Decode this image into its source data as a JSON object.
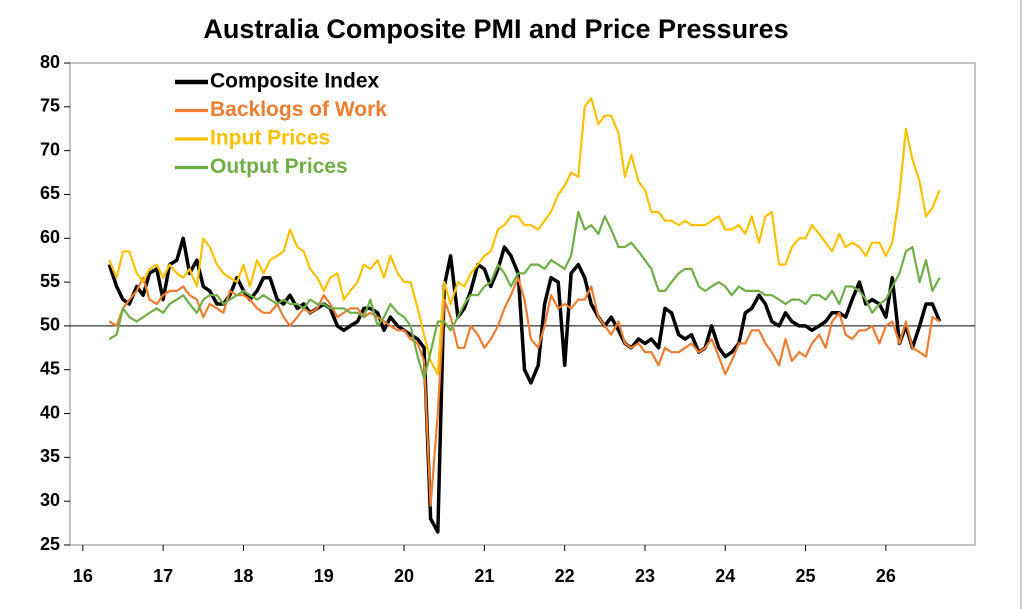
{
  "chart_data": {
    "type": "line",
    "title": "Australia Composite PMI and Price Pressures",
    "x": [
      16.33,
      16.42,
      16.5,
      16.58,
      16.67,
      16.75,
      16.83,
      16.92,
      17,
      17.08,
      17.17,
      17.25,
      17.33,
      17.42,
      17.5,
      17.58,
      17.67,
      17.75,
      17.83,
      17.92,
      18,
      18.08,
      18.17,
      18.25,
      18.33,
      18.42,
      18.5,
      18.58,
      18.67,
      18.75,
      18.83,
      18.92,
      19,
      19.08,
      19.17,
      19.25,
      19.33,
      19.42,
      19.5,
      19.58,
      19.67,
      19.75,
      19.83,
      19.92,
      20,
      20.08,
      20.17,
      20.25,
      20.33,
      20.42,
      20.5,
      20.58,
      20.67,
      20.75,
      20.83,
      20.92,
      21,
      21.08,
      21.17,
      21.25,
      21.33,
      21.42,
      21.5,
      21.58,
      21.67,
      21.75,
      21.83,
      21.92,
      22,
      22.08,
      22.17,
      22.25,
      22.33,
      22.42,
      22.5,
      22.58,
      22.67,
      22.75,
      22.83,
      22.92,
      23,
      23.08,
      23.17,
      23.25,
      23.33,
      23.42,
      23.5,
      23.58,
      23.67,
      23.75,
      23.83,
      23.92,
      24,
      24.08,
      24.17,
      24.25,
      24.33,
      24.42,
      24.5,
      24.58,
      24.67,
      24.75,
      24.83,
      24.92,
      25,
      25.08,
      25.17,
      25.25,
      25.33,
      25.42,
      25.5,
      25.58,
      25.67,
      25.75,
      25.83,
      25.92,
      26,
      26.08,
      26.17,
      26.25,
      26.33,
      26.42,
      26.5,
      26.58,
      26.67
    ],
    "series": [
      {
        "name": "Composite Index",
        "color": "#000000",
        "width": 3.5,
        "values": [
          57,
          54.5,
          53,
          52.5,
          54.5,
          53.5,
          56,
          56.5,
          53,
          57,
          57.5,
          60,
          56,
          57.5,
          54.5,
          54,
          52.5,
          52.5,
          53.5,
          55.5,
          54,
          53,
          54,
          55.5,
          55.5,
          53,
          52.5,
          53.5,
          52,
          52.5,
          51.5,
          52,
          52.5,
          52,
          50,
          49.5,
          50,
          50.5,
          52,
          52,
          51.5,
          49.5,
          51,
          50,
          49.5,
          49,
          48.5,
          47.5,
          28,
          26.5,
          54.5,
          58,
          51,
          52,
          54,
          57,
          56.5,
          54.5,
          56.5,
          59,
          58,
          56,
          45,
          43.5,
          45.5,
          52.5,
          55.5,
          55,
          45.5,
          56,
          57,
          55.5,
          52.5,
          51,
          50,
          51,
          49.5,
          48,
          47.5,
          48.5,
          48,
          48.5,
          47.5,
          52,
          51.5,
          49,
          48.5,
          49,
          47,
          47.5,
          50,
          47.5,
          46.5,
          47,
          48,
          51.5,
          52,
          53.5,
          52.5,
          50.5,
          50,
          51.5,
          50.5,
          50,
          50,
          49.5,
          50,
          50.5,
          51.5,
          51.5,
          51,
          53,
          55,
          52.5,
          53,
          52.5,
          51,
          55.5,
          48,
          50,
          47.5,
          50,
          52.5,
          52.5,
          50.5
        ]
      },
      {
        "name": "Backlogs of Work",
        "color": "#ed7d31",
        "width": 2.2,
        "values": [
          50.5,
          50,
          52,
          53,
          54,
          55.5,
          53,
          52.5,
          53.5,
          54,
          54,
          54.5,
          53.5,
          53,
          51,
          52.5,
          52,
          51.5,
          54,
          53.5,
          53.5,
          53,
          52,
          51.5,
          51.5,
          52.5,
          51,
          50,
          51,
          52,
          51.5,
          52,
          53.5,
          52.5,
          51,
          51.5,
          52,
          52,
          51,
          51.5,
          51,
          50.5,
          50,
          49.5,
          49.5,
          48.5,
          48,
          46,
          29.5,
          40,
          53,
          51,
          47.5,
          47.5,
          50,
          49,
          47.5,
          48.5,
          50,
          52,
          53.5,
          55.5,
          53,
          48.5,
          47.5,
          50,
          53.5,
          52,
          52.5,
          52,
          53,
          53,
          54.5,
          51,
          50,
          49,
          50.5,
          48,
          47.5,
          48,
          47,
          47,
          45.5,
          47.5,
          47,
          47,
          47.5,
          48,
          47,
          47.5,
          48.5,
          46.5,
          44.5,
          46,
          48,
          48,
          49.5,
          49.5,
          48,
          47,
          45.5,
          48.5,
          46,
          47,
          46.5,
          48,
          49,
          47.5,
          50.5,
          51.5,
          49,
          48.5,
          49.5,
          49.5,
          50,
          48,
          50,
          50.5,
          48,
          50.5,
          47.5,
          47,
          46.5,
          51,
          50.5
        ]
      },
      {
        "name": "Input Prices",
        "color": "#ffc000",
        "width": 2.2,
        "values": [
          57.5,
          55.5,
          58.5,
          58.5,
          56,
          55,
          56.5,
          57,
          55.5,
          57,
          56,
          55.5,
          56.5,
          54.5,
          60,
          59,
          57,
          56,
          55.5,
          55,
          57,
          54.5,
          57.5,
          56,
          57.5,
          58,
          58.5,
          61,
          59,
          58.5,
          56.5,
          55.5,
          54,
          55.5,
          56,
          53,
          54,
          55,
          57,
          56.5,
          57.5,
          55.5,
          58,
          56,
          55,
          55,
          52,
          49,
          46,
          44.5,
          55,
          52.5,
          55,
          54.5,
          56,
          57,
          58,
          58.5,
          61,
          61.5,
          62.5,
          62.5,
          61.5,
          61.5,
          61,
          62,
          63,
          65,
          66,
          67.5,
          67,
          75,
          76,
          73,
          74,
          74,
          72,
          67,
          69.5,
          66.5,
          65.5,
          63,
          63,
          62,
          62,
          61.5,
          62,
          61.5,
          61.5,
          61.5,
          62,
          62.5,
          61,
          61,
          61.5,
          60.5,
          62.5,
          59.5,
          62.5,
          63,
          57,
          57,
          59,
          60,
          60,
          61.5,
          60.5,
          59.5,
          58.5,
          60.5,
          59,
          59.5,
          59,
          58,
          59.5,
          59.5,
          58,
          59.5,
          65,
          72.5,
          69,
          66.5,
          62.5,
          63.5,
          65.5
        ]
      },
      {
        "name": "Output Prices",
        "color": "#70ad47",
        "width": 2.2,
        "values": [
          48.5,
          49,
          52,
          51,
          50.5,
          51,
          51.5,
          52,
          51.5,
          52.5,
          53,
          53.5,
          52.5,
          51.5,
          53,
          53.5,
          53.5,
          52.5,
          53,
          53.5,
          54,
          53.5,
          53,
          53.5,
          53,
          52.5,
          53,
          52.5,
          52.5,
          52,
          53,
          52.5,
          52.5,
          52,
          52,
          52,
          51.5,
          51.5,
          51,
          53,
          50,
          51,
          52.5,
          51.5,
          51,
          50,
          46.5,
          44,
          47,
          50.5,
          50.5,
          49.5,
          51,
          52.5,
          53.5,
          53.5,
          54.5,
          55,
          57,
          56,
          54.5,
          56,
          56,
          57,
          57,
          56.5,
          57.5,
          57,
          56.5,
          58,
          63,
          61,
          61.5,
          60.5,
          62.5,
          61,
          59,
          59,
          59.5,
          58.5,
          57.5,
          56.5,
          54,
          54,
          55,
          56,
          56.5,
          56.5,
          54.5,
          54,
          54.5,
          55,
          54.5,
          53.5,
          54.5,
          54,
          54,
          54,
          53.5,
          53.5,
          53,
          52.5,
          53,
          53,
          52.5,
          53.5,
          53.5,
          53,
          54,
          52.5,
          54.5,
          54.5,
          54,
          53,
          51.5,
          52.5,
          53,
          54.5,
          56,
          58.5,
          59,
          55,
          57.5,
          54,
          55.5
        ]
      }
    ],
    "xlim": [
      15.84,
      27.11
    ],
    "xticks": [
      16,
      17,
      18,
      19,
      20,
      21,
      22,
      23,
      24,
      25,
      26
    ],
    "ylim": [
      25,
      80
    ],
    "yticks": [
      25,
      30,
      35,
      40,
      45,
      50,
      55,
      60,
      65,
      70,
      75,
      80
    ],
    "x_axis_at": 50,
    "grid": false,
    "legend": "upper left"
  }
}
